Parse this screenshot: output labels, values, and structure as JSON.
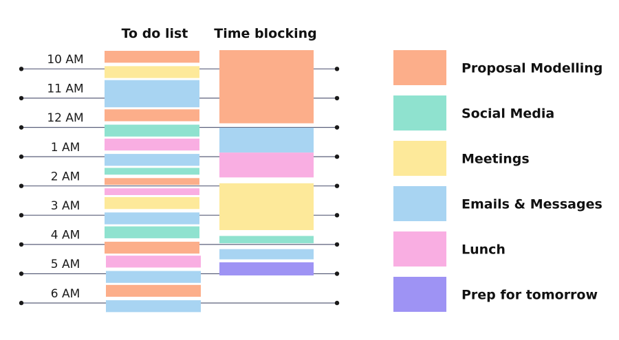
{
  "headers": {
    "todo": "To do list",
    "blocking": "Time blocking"
  },
  "hours": [
    "10 AM",
    "11 AM",
    "12 AM",
    "1 AM",
    "2 AM",
    "3 AM",
    "4 AM",
    "5 AM",
    "6 AM"
  ],
  "categories": [
    {
      "key": "proposal",
      "label": "Proposal Modelling",
      "color": "#fcae8a"
    },
    {
      "key": "social",
      "label": "Social Media",
      "color": "#8fe2cf"
    },
    {
      "key": "meetings",
      "label": "Meetings",
      "color": "#fde99a"
    },
    {
      "key": "emails",
      "label": "Emails & Messages",
      "color": "#a8d4f2"
    },
    {
      "key": "lunch",
      "label": "Lunch",
      "color": "#f9aee2"
    },
    {
      "key": "prep",
      "label": "Prep for tomorrow",
      "color": "#9e93f4"
    }
  ],
  "todo_items": [
    {
      "hour_index": 0,
      "category": "proposal"
    },
    {
      "hour_index": 0,
      "category": "meetings"
    },
    {
      "hour_index": 1,
      "category": "emails"
    },
    {
      "hour_index": 2,
      "category": "proposal"
    },
    {
      "hour_index": 2,
      "category": "social"
    },
    {
      "hour_index": 3,
      "category": "lunch"
    },
    {
      "hour_index": 3,
      "category": "emails"
    },
    {
      "hour_index": 4,
      "category": "social"
    },
    {
      "hour_index": 4,
      "category": "proposal"
    },
    {
      "hour_index": 4,
      "category": "lunch"
    },
    {
      "hour_index": 5,
      "category": "meetings"
    },
    {
      "hour_index": 5,
      "category": "emails"
    },
    {
      "hour_index": 6,
      "category": "social"
    },
    {
      "hour_index": 6,
      "category": "proposal"
    },
    {
      "hour_index": 7,
      "category": "lunch"
    },
    {
      "hour_index": 7,
      "category": "emails"
    },
    {
      "hour_index": 8,
      "category": "proposal"
    },
    {
      "hour_index": 8,
      "category": "emails"
    }
  ],
  "time_blocks": [
    {
      "category": "proposal",
      "start_hour": 0,
      "end_hour": 2.5
    },
    {
      "category": "emails",
      "start_hour": 2.65,
      "end_hour": 3.5
    },
    {
      "category": "lunch",
      "start_hour": 3.5,
      "end_hour": 4.35
    },
    {
      "category": "meetings",
      "start_hour": 4.55,
      "end_hour": 6.15
    },
    {
      "category": "social",
      "start_hour": 6.35,
      "end_hour": 6.6
    },
    {
      "category": "emails",
      "start_hour": 6.8,
      "end_hour": 7.15
    },
    {
      "category": "prep",
      "start_hour": 7.25,
      "end_hour": 7.7
    }
  ]
}
